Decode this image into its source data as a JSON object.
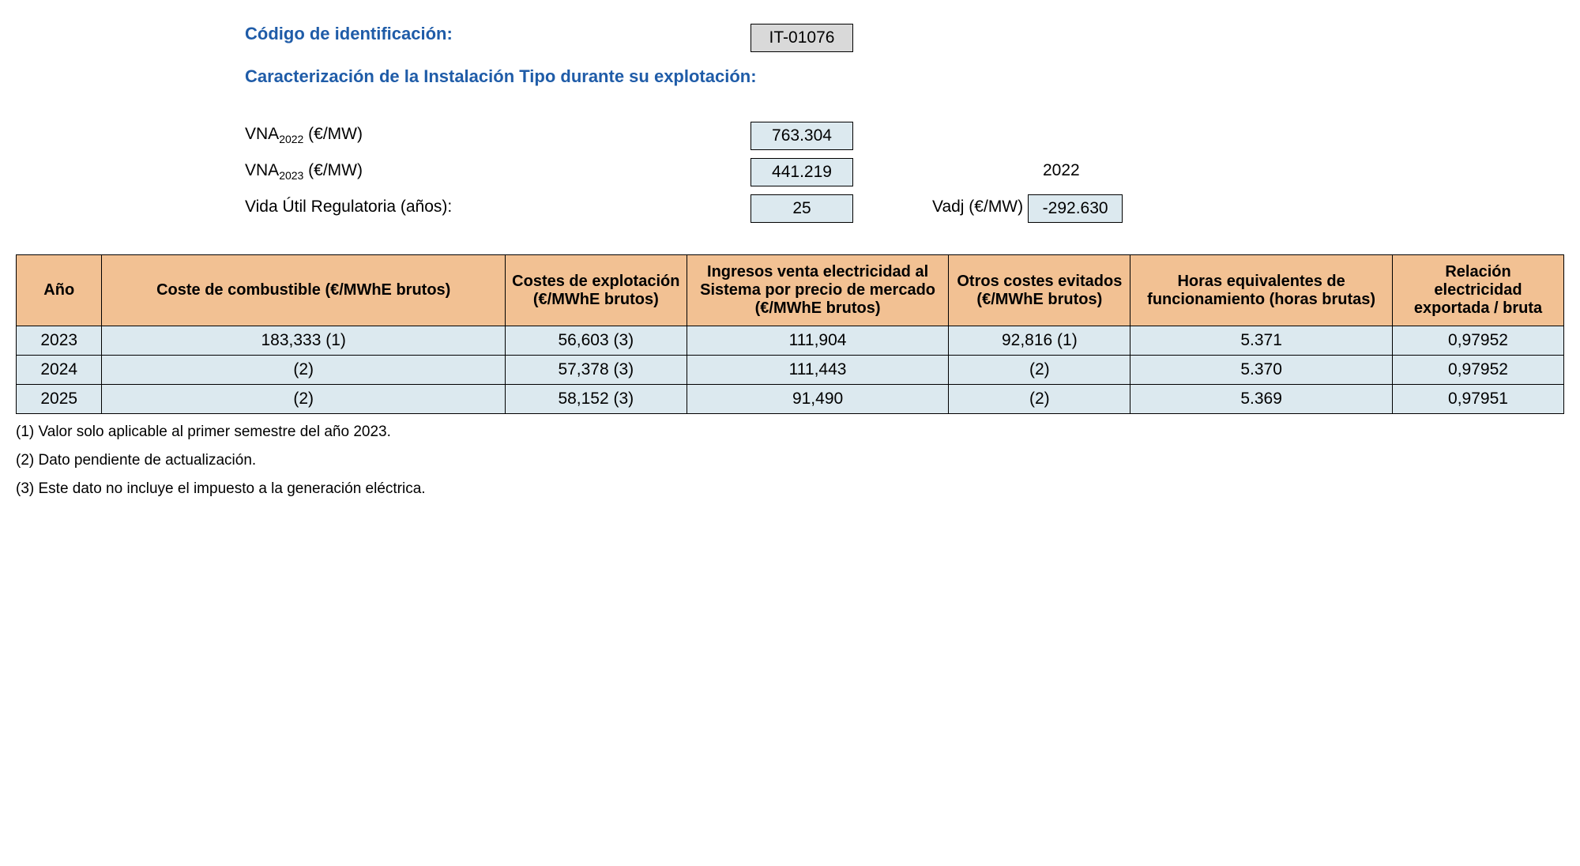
{
  "header": {
    "id_label": "Código de identificación:",
    "id_value": "IT-01076",
    "section_title": "Caracterización de la Instalación Tipo durante su explotación:",
    "vna2022_label_prefix": "VNA",
    "vna2022_sub": "2022",
    "vna2022_unit": " (€/MW)",
    "vna2022_value": "763.304",
    "vna2023_label_prefix": "VNA",
    "vna2023_sub": "2023",
    "vna2023_unit": " (€/MW)",
    "vna2023_value": "441.219",
    "year_side": "2022",
    "vida_label": "Vida Útil Regulatoria (años):",
    "vida_value": "25",
    "vadj_label": "Vadj (€/MW)",
    "vadj_value": "-292.630"
  },
  "table": {
    "columns": {
      "year": "Año",
      "fuel": "Coste de combustible (€/MWhE brutos)",
      "exploit": "Costes de explotación (€/MWhE brutos)",
      "income": "Ingresos venta electricidad al Sistema por precio de mercado (€/MWhE brutos)",
      "other": "Otros costes evitados (€/MWhE brutos)",
      "hours": "Horas equivalentes de funcionamiento (horas brutas)",
      "relation": "Relación electricidad exportada / bruta"
    },
    "rows": [
      {
        "year": "2023",
        "fuel": "183,333 (1)",
        "exploit": "56,603 (3)",
        "income": "111,904",
        "other": "92,816 (1)",
        "hours": "5.371",
        "relation": "0,97952"
      },
      {
        "year": "2024",
        "fuel": "(2)",
        "exploit": "57,378 (3)",
        "income": "111,443",
        "other": "(2)",
        "hours": "5.370",
        "relation": "0,97952"
      },
      {
        "year": "2025",
        "fuel": "(2)",
        "exploit": "58,152 (3)",
        "income": "91,490",
        "other": "(2)",
        "hours": "5.369",
        "relation": "0,97951"
      }
    ]
  },
  "footnotes": {
    "n1": "(1) Valor solo aplicable al primer semestre del año 2023.",
    "n2": "(2) Dato pendiente de actualización.",
    "n3": "(3) Este dato no incluye el impuesto a la generación eléctrica."
  },
  "colors": {
    "heading": "#1f5ca8",
    "header_bg": "#f2c193",
    "cell_bg": "#dce9ef",
    "gray_bg": "#d9d9d9",
    "border": "#000000",
    "text": "#000000"
  }
}
